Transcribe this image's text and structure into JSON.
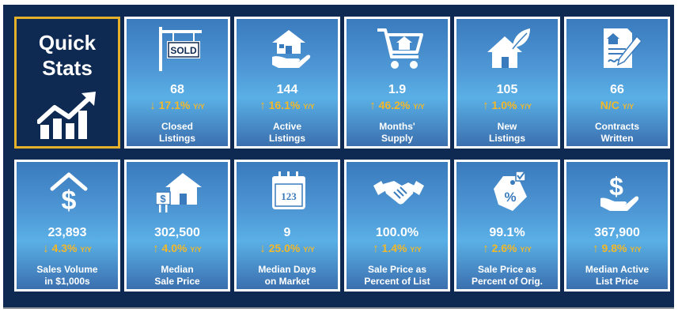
{
  "quick_stats": {
    "title_line1": "Quick",
    "title_line2": "Stats",
    "icon": "chart-up-icon"
  },
  "cards": [
    {
      "id": "closed-listings",
      "icon": "sold-sign-icon",
      "sign_text": "SOLD",
      "value": "68",
      "arrow": "↓",
      "change": "17.1%",
      "yy": "Y/Y",
      "label1": "Closed",
      "label2": "Listings"
    },
    {
      "id": "active-listings",
      "icon": "house-in-hand-icon",
      "value": "144",
      "arrow": "↑",
      "change": "16.1%",
      "yy": "Y/Y",
      "label1": "Active",
      "label2": "Listings"
    },
    {
      "id": "months-supply",
      "icon": "shopping-cart-house-icon",
      "value": "1.9",
      "arrow": "↑",
      "change": "46.2%",
      "yy": "Y/Y",
      "label1": "Months'",
      "label2": "Supply"
    },
    {
      "id": "new-listings",
      "icon": "house-leaf-icon",
      "value": "105",
      "arrow": "↑",
      "change": "1.0%",
      "yy": "Y/Y",
      "label1": "New",
      "label2": "Listings"
    },
    {
      "id": "contracts-written",
      "icon": "contract-pen-icon",
      "value": "66",
      "arrow": "",
      "change": "N/C",
      "yy": "Y/Y",
      "label1": "Contracts",
      "label2": "Written"
    },
    {
      "id": "sales-volume",
      "icon": "house-dollar-icon",
      "value": "23,893",
      "arrow": "↓",
      "change": "4.3%",
      "yy": "Y/Y",
      "label1": "Sales Volume",
      "label2": "in $1,000s"
    },
    {
      "id": "median-sale-price",
      "icon": "house-price-sign-icon",
      "value": "302,500",
      "arrow": "↑",
      "change": "4.0%",
      "yy": "Y/Y",
      "label1": "Median",
      "label2": "Sale Price"
    },
    {
      "id": "median-days-on-market",
      "icon": "calendar-icon",
      "calendar_text": "123",
      "value": "9",
      "arrow": "↓",
      "change": "25.0%",
      "yy": "Y/Y",
      "label1": "Median Days",
      "label2": "on Market"
    },
    {
      "id": "sale-price-percent-list",
      "icon": "handshake-icon",
      "value": "100.0%",
      "arrow": "↑",
      "change": "1.4%",
      "yy": "Y/Y",
      "label1": "Sale Price as",
      "label2": "Percent of List"
    },
    {
      "id": "sale-price-percent-orig",
      "icon": "percent-tag-icon",
      "value": "99.1%",
      "arrow": "↑",
      "change": "2.6%",
      "yy": "Y/Y",
      "label1": "Sale Price as",
      "label2": "Percent of Orig."
    },
    {
      "id": "median-active-list-price",
      "icon": "dollar-hand-icon",
      "value": "367,900",
      "arrow": "↑",
      "change": "9.8%",
      "yy": "Y/Y",
      "label1": "Median Active",
      "label2": "List Price"
    }
  ],
  "colors": {
    "background": "#0f2a52",
    "accent": "#f2b829",
    "border": "#ffffff"
  }
}
